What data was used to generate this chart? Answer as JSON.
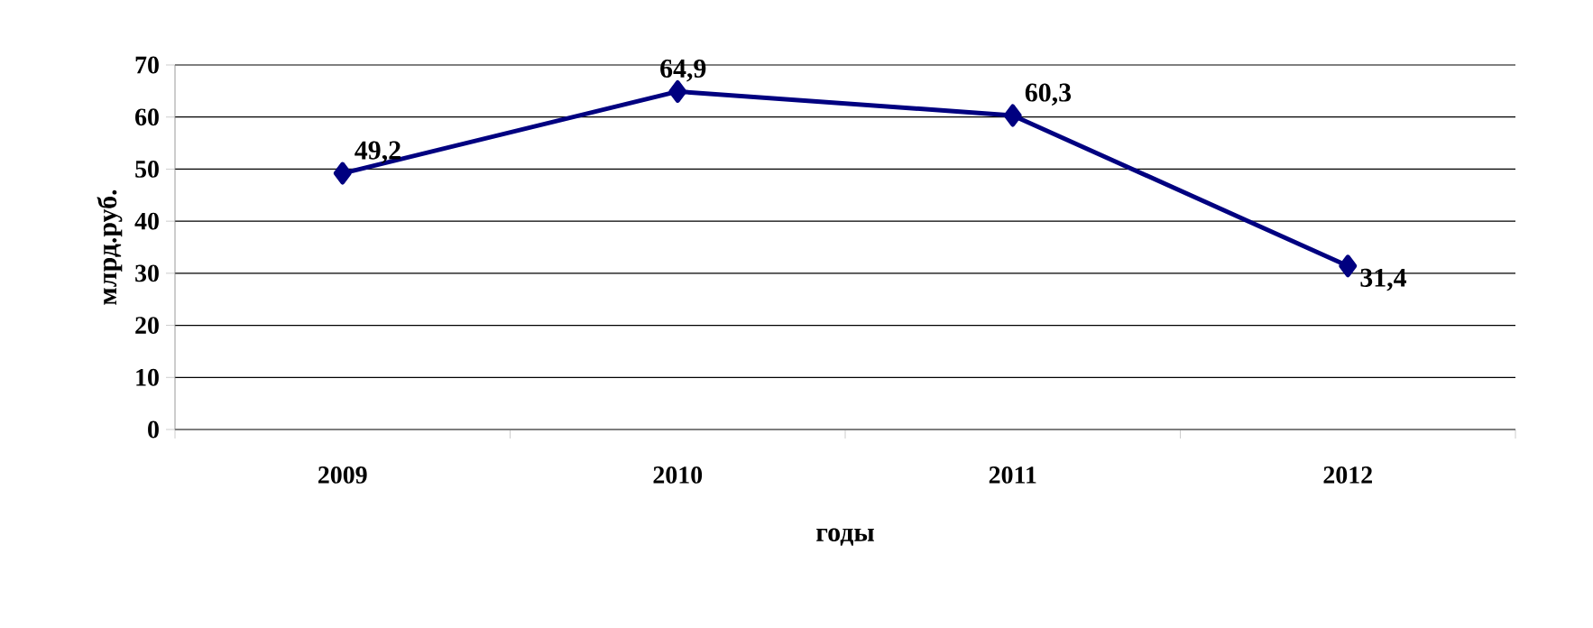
{
  "chart_data": {
    "type": "line",
    "xlabel": "годы",
    "ylabel": "млрд.руб.",
    "categories": [
      "2009",
      "2010",
      "2011",
      "2012"
    ],
    "series": [
      {
        "color": "#000080",
        "values": [
          49.2,
          64.9,
          60.3,
          31.4
        ],
        "value_labels": [
          "49,2",
          "64,9",
          "60,3",
          "31,4"
        ]
      }
    ],
    "ylim": [
      0,
      70
    ],
    "yticks": [
      0,
      10,
      20,
      30,
      40,
      50,
      60,
      70
    ],
    "grid": "y",
    "marker": "diamond",
    "line_style": "solid"
  }
}
